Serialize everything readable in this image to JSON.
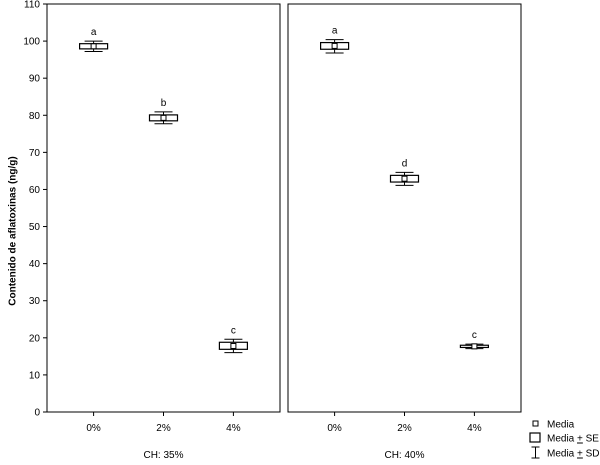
{
  "chart_data": {
    "type": "box",
    "ylabel": "Contenido de aflatoxinas (ng/g)",
    "ylim": [
      0,
      110
    ],
    "yticks": [
      0,
      10,
      20,
      30,
      40,
      50,
      60,
      70,
      80,
      90,
      100,
      110
    ],
    "categories": [
      "0%",
      "2%",
      "4%"
    ],
    "panels": [
      {
        "title": "CH: 35%",
        "boxes": [
          {
            "category": "0%",
            "mean": 98.6,
            "se_low": 97.9,
            "se_high": 99.3,
            "sd_low": 97.2,
            "sd_high": 100.0,
            "letter": "a"
          },
          {
            "category": "2%",
            "mean": 79.3,
            "se_low": 78.5,
            "se_high": 80.1,
            "sd_low": 77.7,
            "sd_high": 80.9,
            "letter": "b"
          },
          {
            "category": "4%",
            "mean": 17.8,
            "se_low": 16.9,
            "se_high": 18.8,
            "sd_low": 16.0,
            "sd_high": 19.6,
            "letter": "c"
          }
        ]
      },
      {
        "title": "CH: 40%",
        "boxes": [
          {
            "category": "0%",
            "mean": 98.7,
            "se_low": 97.8,
            "se_high": 99.6,
            "sd_low": 96.8,
            "sd_high": 100.4,
            "letter": "a"
          },
          {
            "category": "2%",
            "mean": 62.9,
            "se_low": 62.0,
            "se_high": 63.8,
            "sd_low": 61.1,
            "sd_high": 64.6,
            "letter": "d"
          },
          {
            "category": "4%",
            "mean": 17.7,
            "se_low": 17.4,
            "se_high": 18.0,
            "sd_low": 17.1,
            "sd_high": 18.3,
            "letter": "c"
          }
        ]
      }
    ],
    "legend": {
      "position": "bottom-right",
      "items": [
        {
          "key": "mean",
          "label": "Media"
        },
        {
          "key": "se",
          "label": "Media + SE"
        },
        {
          "key": "sd",
          "label": "Media + SD"
        }
      ]
    }
  }
}
